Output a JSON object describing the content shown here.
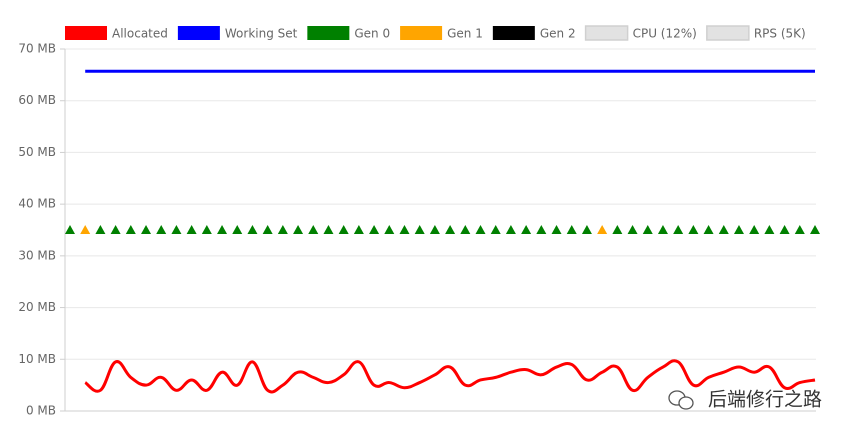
{
  "chart_data": {
    "type": "line",
    "categories": [
      null,
      null,
      null,
      null,
      null,
      null,
      null,
      null,
      null,
      null,
      null,
      null,
      null,
      null,
      null,
      null,
      null,
      null,
      null,
      null,
      null,
      null,
      null,
      null,
      null,
      null,
      null,
      null,
      null,
      null,
      null,
      null,
      null,
      null,
      null,
      null,
      null,
      null,
      null,
      null,
      null,
      null,
      null,
      null,
      null,
      null,
      null,
      null,
      null,
      null
    ],
    "ylim": [
      0,
      70
    ],
    "yticks": [
      {
        "value": 0,
        "label": "0 MB"
      },
      {
        "value": 10,
        "label": "10 MB"
      },
      {
        "value": 20,
        "label": "20 MB"
      },
      {
        "value": 30,
        "label": "30 MB"
      },
      {
        "value": 40,
        "label": "40 MB"
      },
      {
        "value": 50,
        "label": "50 MB"
      },
      {
        "value": 60,
        "label": "60 MB"
      },
      {
        "value": 70,
        "label": "70 MB"
      }
    ],
    "grid": true,
    "legend": "top",
    "series": [
      {
        "name": "Allocated",
        "color": "#ff0000",
        "marker": "line",
        "values": [
          null,
          5.5,
          4,
          9.5,
          6.5,
          5,
          6.5,
          4,
          6,
          4,
          7.5,
          5,
          9.5,
          4,
          5,
          7.5,
          6.5,
          5.5,
          7,
          9.5,
          5,
          5.5,
          4.5,
          5.5,
          7,
          8.5,
          5,
          6,
          6.5,
          7.5,
          8,
          7,
          8.5,
          9,
          6,
          7.5,
          8.5,
          4,
          6.5,
          8.5,
          9.5,
          5,
          6.5,
          7.5,
          8.5,
          7.5,
          8.5,
          4.5,
          5.5,
          6
        ]
      },
      {
        "name": "Working Set",
        "color": "#0000ff",
        "marker": "line",
        "values": [
          null,
          65.7,
          65.7,
          65.7,
          65.7,
          65.7,
          65.7,
          65.7,
          65.7,
          65.7,
          65.7,
          65.7,
          65.7,
          65.7,
          65.7,
          65.7,
          65.7,
          65.7,
          65.7,
          65.7,
          65.7,
          65.7,
          65.7,
          65.7,
          65.7,
          65.7,
          65.7,
          65.7,
          65.7,
          65.7,
          65.7,
          65.7,
          65.7,
          65.7,
          65.7,
          65.7,
          65.7,
          65.7,
          65.7,
          65.7,
          65.7,
          65.7,
          65.7,
          65.7,
          65.7,
          65.7,
          65.7,
          65.7,
          65.7,
          65.7
        ]
      },
      {
        "name": "Gen 0",
        "color": "#008000",
        "marker": "triangle",
        "values": [
          35,
          null,
          35,
          35,
          35,
          35,
          35,
          35,
          35,
          35,
          35,
          35,
          35,
          35,
          35,
          35,
          35,
          35,
          35,
          35,
          35,
          35,
          35,
          35,
          35,
          35,
          35,
          35,
          35,
          35,
          35,
          35,
          35,
          35,
          35,
          null,
          35,
          35,
          35,
          35,
          35,
          35,
          35,
          35,
          35,
          35,
          35,
          35,
          35,
          35
        ]
      },
      {
        "name": "Gen 1",
        "color": "#ffa500",
        "marker": "triangle",
        "values": [
          null,
          35,
          null,
          null,
          null,
          null,
          null,
          null,
          null,
          null,
          null,
          null,
          null,
          null,
          null,
          null,
          null,
          null,
          null,
          null,
          null,
          null,
          null,
          null,
          null,
          null,
          null,
          null,
          null,
          null,
          null,
          null,
          null,
          null,
          null,
          35,
          null,
          null,
          null,
          null,
          null,
          null,
          null,
          null,
          null,
          null,
          null,
          null,
          null,
          null
        ]
      },
      {
        "name": "Gen 2",
        "color": "#000000",
        "marker": "triangle",
        "values": [
          null,
          null,
          null,
          null,
          null,
          null,
          null,
          null,
          null,
          null,
          null,
          null,
          null,
          null,
          null,
          null,
          null,
          null,
          null,
          null,
          null,
          null,
          null,
          null,
          null,
          null,
          null,
          null,
          null,
          null,
          null,
          null,
          null,
          null,
          null,
          null,
          null,
          null,
          null,
          null,
          null,
          null,
          null,
          null,
          null,
          null,
          null,
          null,
          null,
          null
        ]
      },
      {
        "name": "CPU (12%)",
        "color": "#e2e2e2",
        "hidden": true
      },
      {
        "name": "RPS (5K)",
        "color": "#e2e2e2",
        "hidden": true
      }
    ],
    "watermark": "后端修行之路"
  }
}
